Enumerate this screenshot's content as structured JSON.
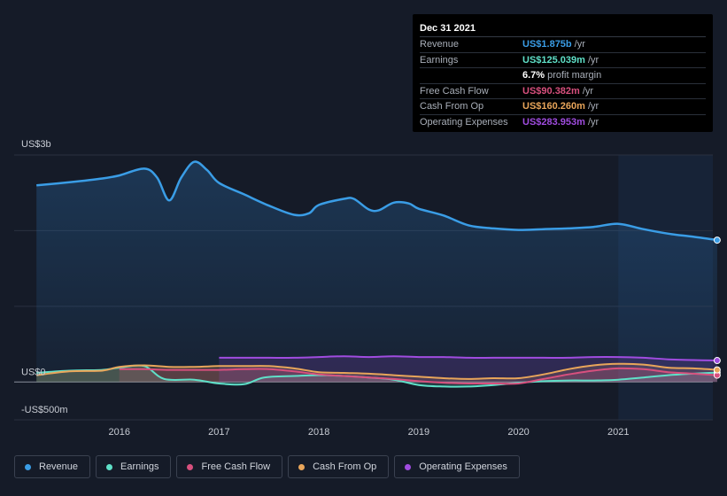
{
  "tooltip": {
    "date": "Dec 31 2021",
    "rows": [
      {
        "label": "Revenue",
        "value": "US$1.875b",
        "unit": "/yr",
        "color": "#3a9de6"
      },
      {
        "label": "Earnings",
        "value": "US$125.039m",
        "unit": "/yr",
        "color": "#5fe0c8"
      },
      {
        "label": "",
        "value": "6.7%",
        "unit": "profit margin",
        "color": "#ffffff"
      },
      {
        "label": "Free Cash Flow",
        "value": "US$90.382m",
        "unit": "/yr",
        "color": "#d8507e"
      },
      {
        "label": "Cash From Op",
        "value": "US$160.260m",
        "unit": "/yr",
        "color": "#e8a55a"
      },
      {
        "label": "Operating Expenses",
        "value": "US$283.953m",
        "unit": "/yr",
        "color": "#a04ce0"
      }
    ]
  },
  "legend": [
    {
      "label": "Revenue",
      "color": "#3a9de6"
    },
    {
      "label": "Earnings",
      "color": "#5fe0c8"
    },
    {
      "label": "Free Cash Flow",
      "color": "#d8507e"
    },
    {
      "label": "Cash From Op",
      "color": "#e8a55a"
    },
    {
      "label": "Operating Expenses",
      "color": "#a04ce0"
    }
  ],
  "chart_data": {
    "type": "area",
    "y_tick_labels": [
      "US$3b",
      "US$0",
      "-US$500m"
    ],
    "x_tick_labels": [
      "2016",
      "2017",
      "2018",
      "2019",
      "2020",
      "2021"
    ],
    "ylim": [
      -500,
      3000
    ],
    "y_unit": "US$m",
    "grid": true,
    "highlight_start": 2021.0,
    "series": [
      {
        "name": "Revenue",
        "color": "#3a9de6",
        "points": [
          [
            2015.17,
            2600
          ],
          [
            2015.5,
            2640
          ],
          [
            2015.83,
            2690
          ],
          [
            2016.0,
            2730
          ],
          [
            2016.25,
            2820
          ],
          [
            2016.38,
            2700
          ],
          [
            2016.5,
            2400
          ],
          [
            2016.62,
            2700
          ],
          [
            2016.75,
            2910
          ],
          [
            2016.88,
            2800
          ],
          [
            2017.0,
            2630
          ],
          [
            2017.25,
            2480
          ],
          [
            2017.5,
            2330
          ],
          [
            2017.75,
            2210
          ],
          [
            2017.9,
            2230
          ],
          [
            2018.0,
            2340
          ],
          [
            2018.25,
            2420
          ],
          [
            2018.35,
            2420
          ],
          [
            2018.5,
            2280
          ],
          [
            2018.6,
            2270
          ],
          [
            2018.75,
            2370
          ],
          [
            2018.9,
            2360
          ],
          [
            2019.0,
            2290
          ],
          [
            2019.25,
            2200
          ],
          [
            2019.5,
            2070
          ],
          [
            2019.75,
            2030
          ],
          [
            2020.0,
            2010
          ],
          [
            2020.25,
            2020
          ],
          [
            2020.5,
            2030
          ],
          [
            2020.75,
            2050
          ],
          [
            2021.0,
            2090
          ],
          [
            2021.25,
            2020
          ],
          [
            2021.5,
            1960
          ],
          [
            2021.75,
            1920
          ],
          [
            2021.99,
            1875
          ]
        ]
      },
      {
        "name": "Earnings",
        "color": "#5fe0c8",
        "points": [
          [
            2015.17,
            120
          ],
          [
            2015.5,
            150
          ],
          [
            2015.83,
            160
          ],
          [
            2016.0,
            190
          ],
          [
            2016.25,
            210
          ],
          [
            2016.45,
            40
          ],
          [
            2016.75,
            30
          ],
          [
            2017.0,
            -20
          ],
          [
            2017.25,
            -30
          ],
          [
            2017.45,
            60
          ],
          [
            2017.75,
            80
          ],
          [
            2018.0,
            90
          ],
          [
            2018.25,
            80
          ],
          [
            2018.5,
            60
          ],
          [
            2018.75,
            30
          ],
          [
            2019.0,
            -40
          ],
          [
            2019.25,
            -60
          ],
          [
            2019.5,
            -60
          ],
          [
            2019.75,
            -40
          ],
          [
            2020.0,
            -10
          ],
          [
            2020.25,
            10
          ],
          [
            2020.5,
            20
          ],
          [
            2020.75,
            20
          ],
          [
            2021.0,
            30
          ],
          [
            2021.25,
            60
          ],
          [
            2021.5,
            90
          ],
          [
            2021.75,
            110
          ],
          [
            2021.99,
            125
          ]
        ]
      },
      {
        "name": "Free Cash Flow",
        "color": "#d8507e",
        "points": [
          [
            2016.0,
            170
          ],
          [
            2016.25,
            170
          ],
          [
            2016.5,
            160
          ],
          [
            2016.75,
            160
          ],
          [
            2017.0,
            160
          ],
          [
            2017.25,
            170
          ],
          [
            2017.5,
            170
          ],
          [
            2017.75,
            140
          ],
          [
            2018.0,
            100
          ],
          [
            2018.25,
            80
          ],
          [
            2018.5,
            60
          ],
          [
            2018.75,
            40
          ],
          [
            2019.0,
            10
          ],
          [
            2019.25,
            -10
          ],
          [
            2019.5,
            -20
          ],
          [
            2019.75,
            -20
          ],
          [
            2020.0,
            -20
          ],
          [
            2020.25,
            40
          ],
          [
            2020.5,
            100
          ],
          [
            2020.75,
            150
          ],
          [
            2021.0,
            180
          ],
          [
            2021.25,
            170
          ],
          [
            2021.5,
            130
          ],
          [
            2021.75,
            110
          ],
          [
            2021.99,
            90
          ]
        ]
      },
      {
        "name": "Cash From Op",
        "color": "#e8a55a",
        "points": [
          [
            2015.17,
            90
          ],
          [
            2015.5,
            140
          ],
          [
            2015.83,
            150
          ],
          [
            2016.0,
            200
          ],
          [
            2016.25,
            220
          ],
          [
            2016.5,
            200
          ],
          [
            2016.75,
            200
          ],
          [
            2017.0,
            210
          ],
          [
            2017.25,
            210
          ],
          [
            2017.5,
            210
          ],
          [
            2017.75,
            180
          ],
          [
            2018.0,
            130
          ],
          [
            2018.25,
            120
          ],
          [
            2018.5,
            110
          ],
          [
            2018.75,
            90
          ],
          [
            2019.0,
            70
          ],
          [
            2019.25,
            50
          ],
          [
            2019.5,
            40
          ],
          [
            2019.75,
            50
          ],
          [
            2020.0,
            50
          ],
          [
            2020.25,
            100
          ],
          [
            2020.5,
            170
          ],
          [
            2020.75,
            220
          ],
          [
            2021.0,
            240
          ],
          [
            2021.25,
            230
          ],
          [
            2021.5,
            190
          ],
          [
            2021.75,
            180
          ],
          [
            2021.99,
            160
          ]
        ]
      },
      {
        "name": "Operating Expenses",
        "color": "#a04ce0",
        "points": [
          [
            2017.0,
            320
          ],
          [
            2017.25,
            320
          ],
          [
            2017.5,
            320
          ],
          [
            2017.75,
            320
          ],
          [
            2018.0,
            330
          ],
          [
            2018.25,
            340
          ],
          [
            2018.5,
            330
          ],
          [
            2018.75,
            340
          ],
          [
            2019.0,
            330
          ],
          [
            2019.25,
            330
          ],
          [
            2019.5,
            320
          ],
          [
            2019.75,
            320
          ],
          [
            2020.0,
            320
          ],
          [
            2020.25,
            320
          ],
          [
            2020.5,
            320
          ],
          [
            2020.75,
            330
          ],
          [
            2021.0,
            330
          ],
          [
            2021.25,
            320
          ],
          [
            2021.5,
            300
          ],
          [
            2021.75,
            290
          ],
          [
            2021.99,
            284
          ]
        ]
      }
    ]
  }
}
